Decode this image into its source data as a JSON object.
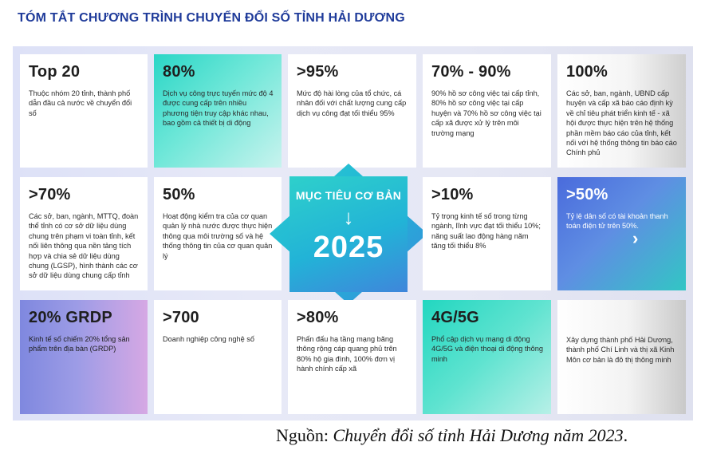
{
  "title": "TÓM TẮT CHƯƠNG TRÌNH CHUYỂN ĐỔI SỐ TỈNH HẢI DƯƠNG",
  "center": {
    "goal_label": "MỤC TIÊU CƠ BẢN",
    "arrow": "↓",
    "year": "2025"
  },
  "cards": [
    {
      "big": "Top 20",
      "text": "Thuộc nhóm 20 tỉnh, thành phố dẫn đầu cả nước về  chuyển đổi số"
    },
    {
      "big": "80%",
      "text": "Dịch vụ công trực tuyến mức độ 4 được cung cấp trên nhiều phương tiện truy cập khác nhau, bao gồm cả thiết bị di động"
    },
    {
      "big": ">95%",
      "text": "Mức độ hài lòng của tổ chức, cá nhân đối với chất lượng cung cấp dịch vụ công đạt tối thiểu 95%"
    },
    {
      "big": "70% - 90%",
      "text": "90% hồ sơ công việc tại cấp tỉnh, 80% hồ sơ công việc tại cấp huyện và 70% hồ sơ công việc tại cấp xã được xử lý trên môi trường mạng"
    },
    {
      "big": "100%",
      "text": "Các sở, ban, ngành, UBND cấp huyện và cấp xã báo cáo định kỳ về chỉ tiêu phát triển kinh tế - xã hội được thực hiện trên hệ thống phần mềm báo cáo của tỉnh, kết nối với hệ thống thông tin báo cáo Chính phủ"
    },
    {
      "big": ">70%",
      "text": "Các sở, ban, ngành, MTTQ, đoàn thể tỉnh có cơ sở dữ liệu dùng chung trên phạm vi toàn tỉnh, kết nối liên thông qua nền tảng tích hợp và chia sẻ dữ liệu dùng chung (LGSP), hình thành các cơ sở dữ liệu dùng chung cấp tỉnh"
    },
    {
      "big": "50%",
      "text": "Hoạt động kiểm tra của cơ quan quản lý nhà nước được thực hiện thông qua môi trường số và hệ thống thông tin của cơ quan quản lý"
    },
    {
      "big": ">10%",
      "text": "Tỷ trọng kinh tế số trong từng ngành, lĩnh vực đạt tối thiểu 10%; năng suất lao động hàng năm tăng tối thiểu 8%"
    },
    {
      "big": ">50%",
      "text": "Tỷ lệ dân số có tài khoản thanh toán điện tử trên 50%."
    },
    {
      "big": "20% GRDP",
      "text": "Kinh tế số chiếm 20% tổng sản phẩm trên địa bàn (GRDP)"
    },
    {
      "big": ">700",
      "text": "Doanh nghiệp công nghệ số"
    },
    {
      "big": ">80%",
      "text": "Phấn đấu hạ tầng mạng băng thông rộng cáp quang phủ trên 80% hộ gia đình, 100% đơn vị hành chính cấp xã"
    },
    {
      "big": "4G/5G",
      "text": "Phổ cập dịch vụ mạng di động 4G/5G và điện thoại di động thông minh"
    },
    {
      "big": "",
      "text": "Xây dựng thành phố Hải Dương, thành phố Chí Linh và thị xã Kinh Môn cơ bản là đô thị thông minh"
    }
  ],
  "chevron": "›",
  "source": {
    "prefix": "Nguồn: ",
    "title": "Chuyển đổi số tỉnh Hải Dương năm 2023",
    "suffix": "."
  },
  "colors": {
    "title": "#1f3b9a",
    "teal": "#2ad6c6",
    "blue": "#4a6bdc",
    "purple": "#9d9ce6"
  }
}
